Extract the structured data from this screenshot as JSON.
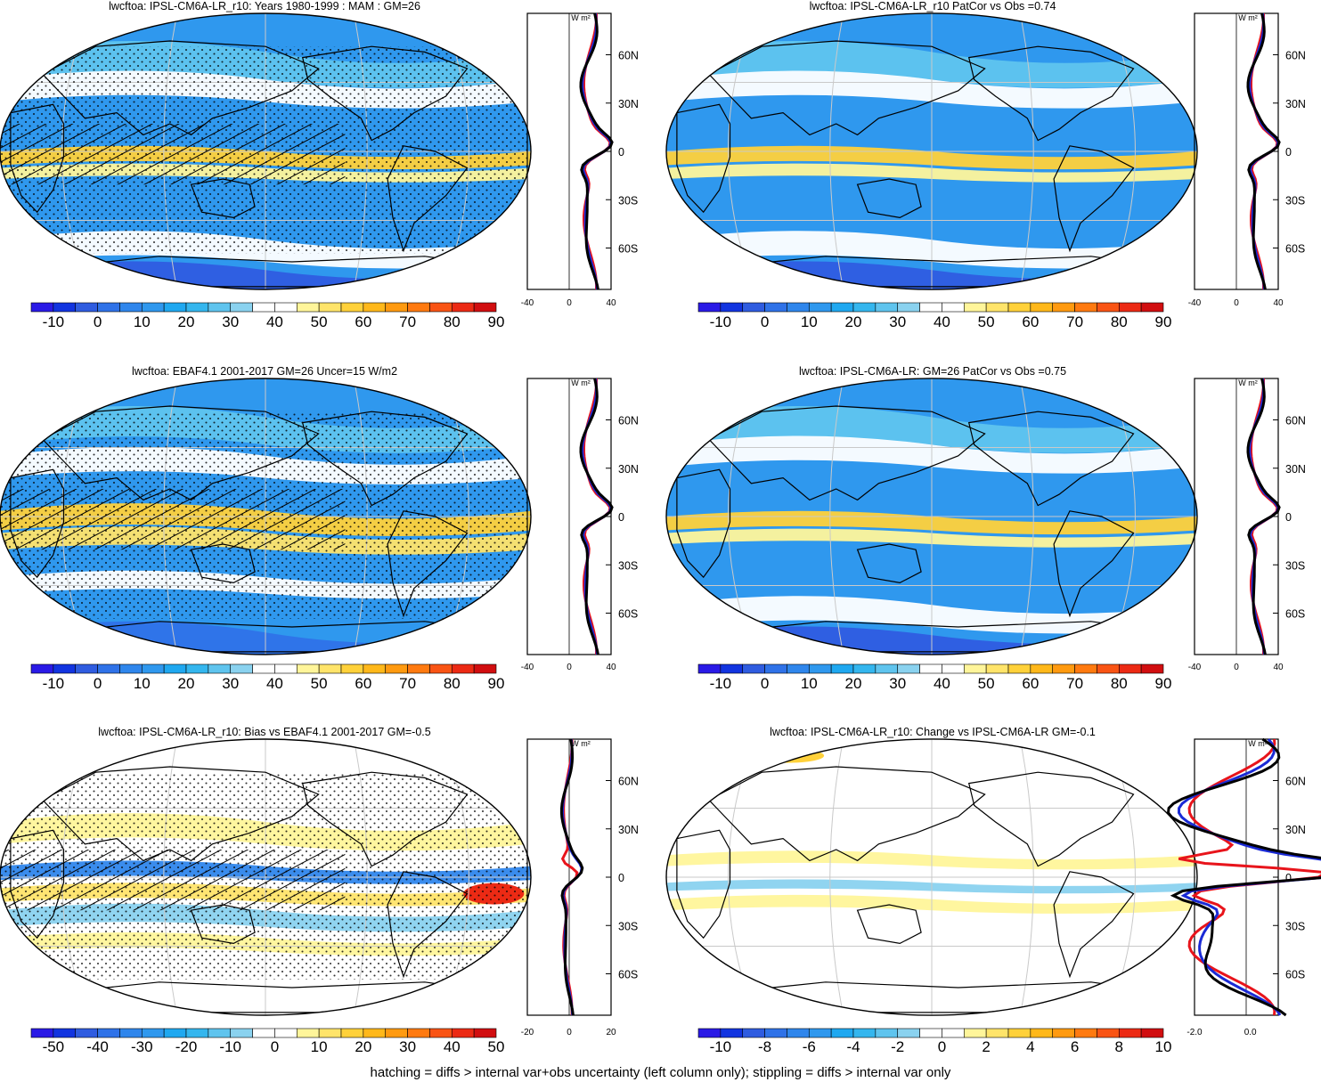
{
  "footer_note": "hatching = diffs > internal var+obs uncertainty (left column only); stippling = diffs > internal var only",
  "units_label": "W m²",
  "lat_ticks": [
    "60N",
    "30N",
    "0",
    "30S",
    "60S"
  ],
  "colors": {
    "land_outline": "#000000",
    "zonal_red": "#e8141b",
    "zonal_blue": "#1a2ad6",
    "zonal_black": "#000000",
    "graticule": "#c9c9c9"
  },
  "chart_data": [
    {
      "type": "heatmap",
      "projection": "robinson",
      "title": "lwcftoa: IPSL-CM6A-LR_r10: Years 1980-1999 : MAM : GM=26",
      "field": "mean",
      "hatching": true,
      "stippling": true,
      "colorbar": {
        "labels": [
          "-10",
          "0",
          "10",
          "20",
          "30",
          "40",
          "50",
          "60",
          "70",
          "80",
          "90"
        ]
      },
      "zonal_mean": {
        "xlim": [
          -40,
          40
        ],
        "xticks": [
          "-40",
          "0",
          "40"
        ],
        "series_colors": [
          "#e8141b",
          "#1a2ad6",
          "#000000"
        ]
      }
    },
    {
      "type": "heatmap",
      "projection": "robinson",
      "title": "lwcftoa: IPSL-CM6A-LR_r10 PatCor vs Obs =0.74",
      "field": "mean",
      "hatching": false,
      "stippling": false,
      "colorbar": {
        "labels": [
          "-10",
          "0",
          "10",
          "20",
          "30",
          "40",
          "50",
          "60",
          "70",
          "80",
          "90"
        ]
      },
      "zonal_mean": {
        "xlim": [
          -40,
          40
        ],
        "xticks": [
          "-40",
          "0",
          "40"
        ],
        "series_colors": [
          "#e8141b",
          "#1a2ad6",
          "#000000"
        ]
      }
    },
    {
      "type": "heatmap",
      "projection": "robinson",
      "title": "lwcftoa: EBAF4.1 2001-2017 GM=26 Uncer=15 W/m2",
      "field": "obs",
      "hatching": true,
      "stippling": true,
      "colorbar": {
        "labels": [
          "-10",
          "0",
          "10",
          "20",
          "30",
          "40",
          "50",
          "60",
          "70",
          "80",
          "90"
        ]
      },
      "zonal_mean": {
        "xlim": [
          -40,
          40
        ],
        "xticks": [
          "-40",
          "0",
          "40"
        ],
        "series_colors": [
          "#e8141b",
          "#1a2ad6",
          "#000000"
        ]
      }
    },
    {
      "type": "heatmap",
      "projection": "robinson",
      "title": "lwcftoa: IPSL-CM6A-LR: GM=26 PatCor vs Obs =0.75",
      "field": "mean",
      "hatching": false,
      "stippling": false,
      "colorbar": {
        "labels": [
          "-10",
          "0",
          "10",
          "20",
          "30",
          "40",
          "50",
          "60",
          "70",
          "80",
          "90"
        ]
      },
      "zonal_mean": {
        "xlim": [
          -40,
          40
        ],
        "xticks": [
          "-40",
          "0",
          "40"
        ],
        "series_colors": [
          "#e8141b",
          "#1a2ad6",
          "#000000"
        ]
      }
    },
    {
      "type": "heatmap",
      "projection": "robinson",
      "title": "lwcftoa: IPSL-CM6A-LR_r10: Bias vs EBAF4.1 2001-2017 GM=-0.5",
      "field": "bias",
      "hatching": true,
      "stippling": true,
      "colorbar": {
        "labels": [
          "-50",
          "-40",
          "-30",
          "-20",
          "-10",
          "0",
          "10",
          "20",
          "30",
          "40",
          "50"
        ]
      },
      "zonal_mean": {
        "xlim": [
          -20,
          20
        ],
        "xticks": [
          "-20",
          "0",
          "20"
        ],
        "series_colors": [
          "#e8141b",
          "#1a2ad6",
          "#000000"
        ]
      }
    },
    {
      "type": "heatmap",
      "projection": "robinson",
      "title": "lwcftoa: IPSL-CM6A-LR_r10: Change vs IPSL-CM6A-LR GM=-0.1",
      "field": "change",
      "hatching": false,
      "stippling": false,
      "colorbar": {
        "labels": [
          "-10",
          "-8",
          "-6",
          "-4",
          "-2",
          "0",
          "2",
          "4",
          "6",
          "8",
          "10"
        ]
      },
      "zonal_mean": {
        "xlim": [
          -2.0,
          1.0
        ],
        "xticks": [
          "-2.0",
          "0.0"
        ],
        "series_colors": [
          "#e8141b",
          "#1a2ad6",
          "#000000"
        ]
      }
    }
  ]
}
